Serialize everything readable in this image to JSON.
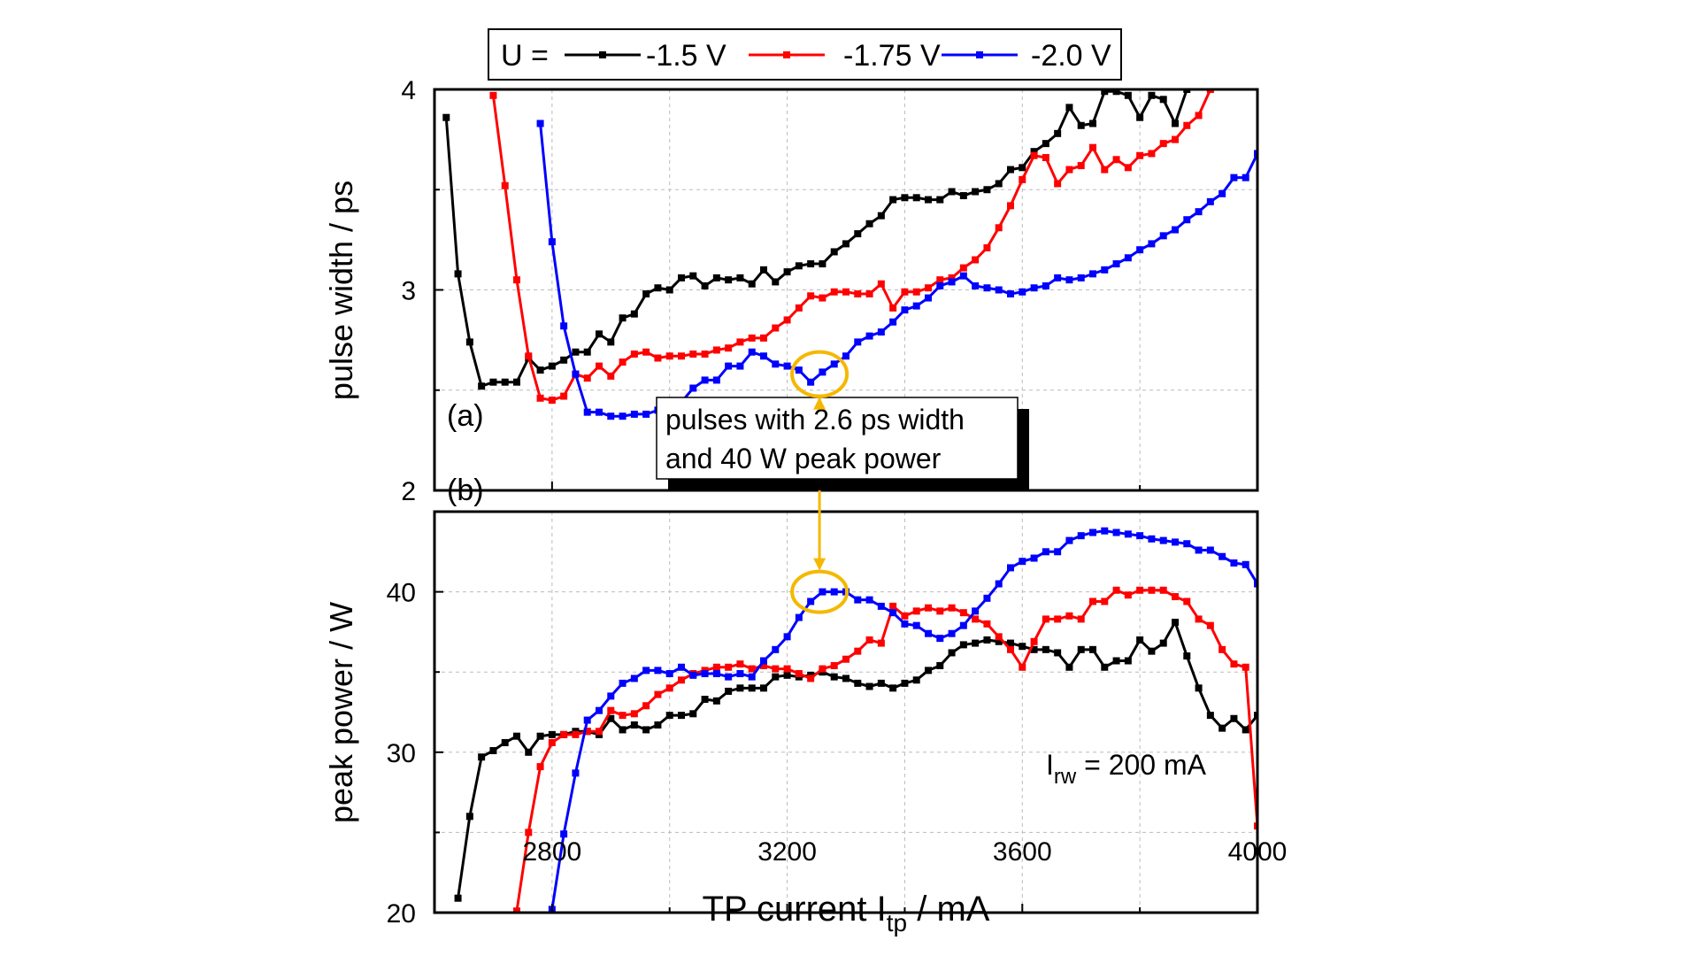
{
  "chart_data": {
    "type": "line",
    "xlabel": "TP current I_tp / mA",
    "xlabel_main": "TP current I",
    "xlabel_sub": "tp",
    "xlabel_tail": " / mA",
    "xlim": [
      2600,
      4000
    ],
    "xticks": [
      2800,
      3200,
      3600,
      4000
    ],
    "grid": true,
    "legend": {
      "prefix": "U =",
      "placement": "top",
      "entries": [
        "-1.5 V",
        "-1.75 V",
        "-2.0 V"
      ]
    },
    "colors": [
      "#000000",
      "#ff0000",
      "#0000ff"
    ],
    "highlight_color": "#f5b800",
    "annotation": {
      "line1": "pulses with 2.6 ps width",
      "line2": "and 40 W peak power",
      "x": 3255,
      "y_a": 2.58,
      "y_b": 40.0
    },
    "irw_label": {
      "main": "I",
      "sub": "rw",
      "tail": " = 200 mA"
    },
    "panels": [
      {
        "label": "(a)",
        "ylabel": "pulse width / ps",
        "ylim": [
          2,
          4
        ],
        "yticks": [
          2,
          3,
          4
        ],
        "series": [
          {
            "name": "-1.5 V",
            "x0": 2620,
            "values": [
              3.86,
              3.08,
              2.74,
              2.52,
              2.54,
              2.54,
              2.54,
              2.66,
              2.6,
              2.62,
              2.65,
              2.69,
              2.69,
              2.78,
              2.74,
              2.86,
              2.88,
              2.98,
              3.01,
              3.0,
              3.06,
              3.07,
              3.02,
              3.06,
              3.05,
              3.06,
              3.03,
              3.1,
              3.04,
              3.09,
              3.12,
              3.13,
              3.13,
              3.19,
              3.23,
              3.28,
              3.33,
              3.37,
              3.45,
              3.46,
              3.46,
              3.45,
              3.45,
              3.49,
              3.47,
              3.49,
              3.5,
              3.53,
              3.6,
              3.61,
              3.69,
              3.73,
              3.78,
              3.91,
              3.82,
              3.83,
              3.99,
              3.99,
              3.97,
              3.86,
              3.97,
              3.95,
              3.83,
              4.0
            ]
          },
          {
            "name": "-1.75 V",
            "x0": 2700,
            "values": [
              3.97,
              3.52,
              3.05,
              2.67,
              2.46,
              2.45,
              2.47,
              2.58,
              2.56,
              2.62,
              2.57,
              2.64,
              2.68,
              2.69,
              2.66,
              2.67,
              2.67,
              2.68,
              2.68,
              2.7,
              2.71,
              2.74,
              2.76,
              2.76,
              2.81,
              2.85,
              2.91,
              2.97,
              2.96,
              2.99,
              2.99,
              2.98,
              2.98,
              3.03,
              2.91,
              2.99,
              2.99,
              3.01,
              3.05,
              3.06,
              3.11,
              3.15,
              3.21,
              3.31,
              3.42,
              3.55,
              3.67,
              3.66,
              3.53,
              3.6,
              3.62,
              3.71,
              3.6,
              3.65,
              3.61,
              3.67,
              3.68,
              3.73,
              3.75,
              3.82,
              3.87,
              4.0
            ]
          },
          {
            "name": "-2.0 V",
            "x0": 2780,
            "values": [
              3.83,
              3.24,
              2.82,
              2.58,
              2.39,
              2.39,
              2.37,
              2.37,
              2.38,
              2.38,
              2.4,
              2.44,
              2.44,
              2.51,
              2.55,
              2.55,
              2.62,
              2.62,
              2.69,
              2.67,
              2.63,
              2.62,
              2.6,
              2.54,
              2.59,
              2.63,
              2.67,
              2.74,
              2.77,
              2.79,
              2.84,
              2.9,
              2.92,
              2.96,
              3.02,
              3.04,
              3.07,
              3.02,
              3.01,
              3.0,
              2.98,
              2.99,
              3.01,
              3.02,
              3.06,
              3.05,
              3.06,
              3.08,
              3.1,
              3.13,
              3.16,
              3.2,
              3.23,
              3.27,
              3.3,
              3.35,
              3.39,
              3.44,
              3.48,
              3.56,
              3.56,
              3.68
            ]
          }
        ]
      },
      {
        "label": "(b)",
        "ylabel": "peak power / W",
        "ylim": [
          20,
          45
        ],
        "yticks": [
          20,
          30,
          40
        ],
        "series": [
          {
            "name": "-1.5 V",
            "x0": 2640,
            "values": [
              20.9,
              26.0,
              29.7,
              30.1,
              30.6,
              31.0,
              30.0,
              31.0,
              31.1,
              31.1,
              31.3,
              31.3,
              31.1,
              32.1,
              31.4,
              31.7,
              31.4,
              31.7,
              32.3,
              32.3,
              32.4,
              33.3,
              33.2,
              33.8,
              34.0,
              34.0,
              34.0,
              34.7,
              34.8,
              34.7,
              34.8,
              35.0,
              34.7,
              34.6,
              34.3,
              34.1,
              34.3,
              34.0,
              34.3,
              34.5,
              35.1,
              35.4,
              36.2,
              36.7,
              36.8,
              37.0,
              36.9,
              36.8,
              36.6,
              36.4,
              36.4,
              36.2,
              35.3,
              36.4,
              36.4,
              35.3,
              35.7,
              35.7,
              37.0,
              36.3,
              36.8,
              38.1,
              36.0,
              34.0,
              32.3,
              31.5,
              32.1,
              31.4,
              32.3
            ]
          },
          {
            "name": "-1.75 V",
            "x0": 2740,
            "values": [
              20.1,
              25.0,
              29.1,
              30.6,
              31.1,
              31.1,
              31.3,
              31.3,
              32.6,
              32.3,
              32.4,
              32.9,
              33.6,
              34.0,
              34.5,
              34.9,
              35.1,
              35.3,
              35.3,
              35.5,
              35.2,
              35.4,
              35.2,
              35.2,
              34.9,
              34.6,
              35.2,
              35.4,
              35.8,
              36.3,
              37.0,
              36.8,
              39.1,
              38.5,
              38.8,
              39.0,
              38.8,
              39.0,
              38.7,
              38.3,
              38.0,
              37.2,
              36.4,
              35.3,
              36.9,
              38.3,
              38.3,
              38.5,
              38.3,
              39.4,
              39.4,
              40.1,
              39.8,
              40.1,
              40.1,
              40.1,
              39.7,
              39.4,
              38.3,
              37.9,
              36.4,
              35.5,
              35.3,
              25.4
            ]
          },
          {
            "name": "-2.0 V",
            "x0": 2800,
            "values": [
              20.2,
              24.9,
              28.7,
              32.0,
              32.6,
              33.5,
              34.3,
              34.6,
              35.1,
              35.1,
              34.9,
              35.3,
              34.8,
              34.9,
              34.9,
              34.7,
              34.9,
              34.7,
              35.7,
              36.4,
              37.2,
              38.4,
              39.4,
              40.0,
              40.0,
              40.0,
              39.5,
              39.5,
              39.1,
              38.7,
              38.0,
              37.9,
              37.4,
              37.1,
              37.4,
              37.9,
              38.8,
              39.6,
              40.5,
              41.5,
              41.9,
              42.1,
              42.5,
              42.5,
              43.2,
              43.5,
              43.7,
              43.8,
              43.7,
              43.6,
              43.5,
              43.3,
              43.2,
              43.1,
              43.0,
              42.6,
              42.6,
              42.2,
              41.8,
              41.7,
              40.5
            ]
          }
        ]
      }
    ],
    "x_step": 20
  }
}
